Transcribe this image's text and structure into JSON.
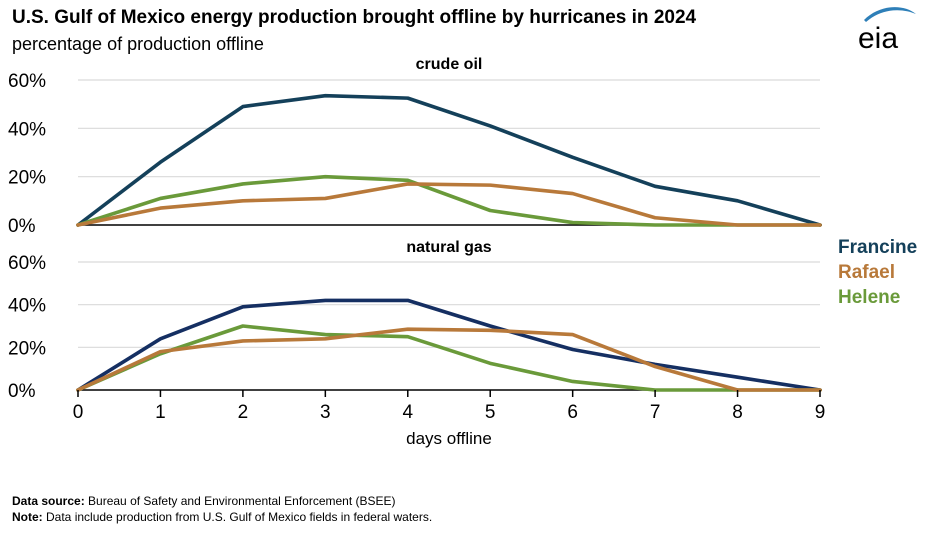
{
  "title": "U.S. Gulf of Mexico energy production brought offline by hurricanes in 2024",
  "subtitle": "percentage of production offline",
  "logo_text": "eia",
  "colors": {
    "Francine": "#14405a",
    "Rafael": "#b8793a",
    "Helene": "#6a9a3a",
    "Francine_gas": "#152f62",
    "axis": "#000000",
    "grid": "#d9d9d9",
    "logo_blue": "#2e7fb8"
  },
  "legend": [
    {
      "name": "Francine",
      "color": "#14405a"
    },
    {
      "name": "Rafael",
      "color": "#b8793a"
    },
    {
      "name": "Helene",
      "color": "#6a9a3a"
    }
  ],
  "footer": {
    "source_label": "Data source:",
    "source_text": " Bureau of Safety and Environmental Enforcement (BSEE)",
    "note_label": "Note:",
    "note_text": " Data include production from U.S. Gulf of Mexico fields in federal waters."
  },
  "chart_data": [
    {
      "type": "line",
      "title": "crude oil",
      "x": [
        0,
        1,
        2,
        3,
        4,
        5,
        6,
        7,
        8,
        9
      ],
      "ylim": [
        0,
        60
      ],
      "yticks": [
        "0%",
        "20%",
        "40%",
        "60%"
      ],
      "xlabel": "",
      "grid": true,
      "series": [
        {
          "name": "Francine",
          "values": [
            0,
            26,
            49,
            53.5,
            52.5,
            41,
            28,
            16,
            10,
            0
          ]
        },
        {
          "name": "Helene",
          "values": [
            0,
            11,
            17,
            20,
            18.5,
            6,
            1,
            0,
            0,
            0
          ]
        },
        {
          "name": "Rafael",
          "values": [
            0,
            7,
            10,
            11,
            17,
            16.5,
            13,
            3,
            0,
            0
          ]
        }
      ]
    },
    {
      "type": "line",
      "title": "natural gas",
      "x": [
        0,
        1,
        2,
        3,
        4,
        5,
        6,
        7,
        8,
        9
      ],
      "xticks": [
        "0",
        "1",
        "2",
        "3",
        "4",
        "5",
        "6",
        "7",
        "8",
        "9"
      ],
      "ylim": [
        0,
        60
      ],
      "yticks": [
        "0%",
        "20%",
        "40%",
        "60%"
      ],
      "xlabel": "days offline",
      "grid": true,
      "series": [
        {
          "name": "Francine",
          "values": [
            0,
            24,
            39,
            42,
            42,
            30,
            19,
            12,
            6,
            0
          ]
        },
        {
          "name": "Helene",
          "values": [
            0,
            17,
            30,
            26,
            25,
            12.5,
            4,
            0,
            0,
            0
          ]
        },
        {
          "name": "Rafael",
          "values": [
            0,
            18,
            23,
            24,
            28.5,
            28,
            26,
            11,
            0,
            0
          ]
        }
      ]
    }
  ]
}
